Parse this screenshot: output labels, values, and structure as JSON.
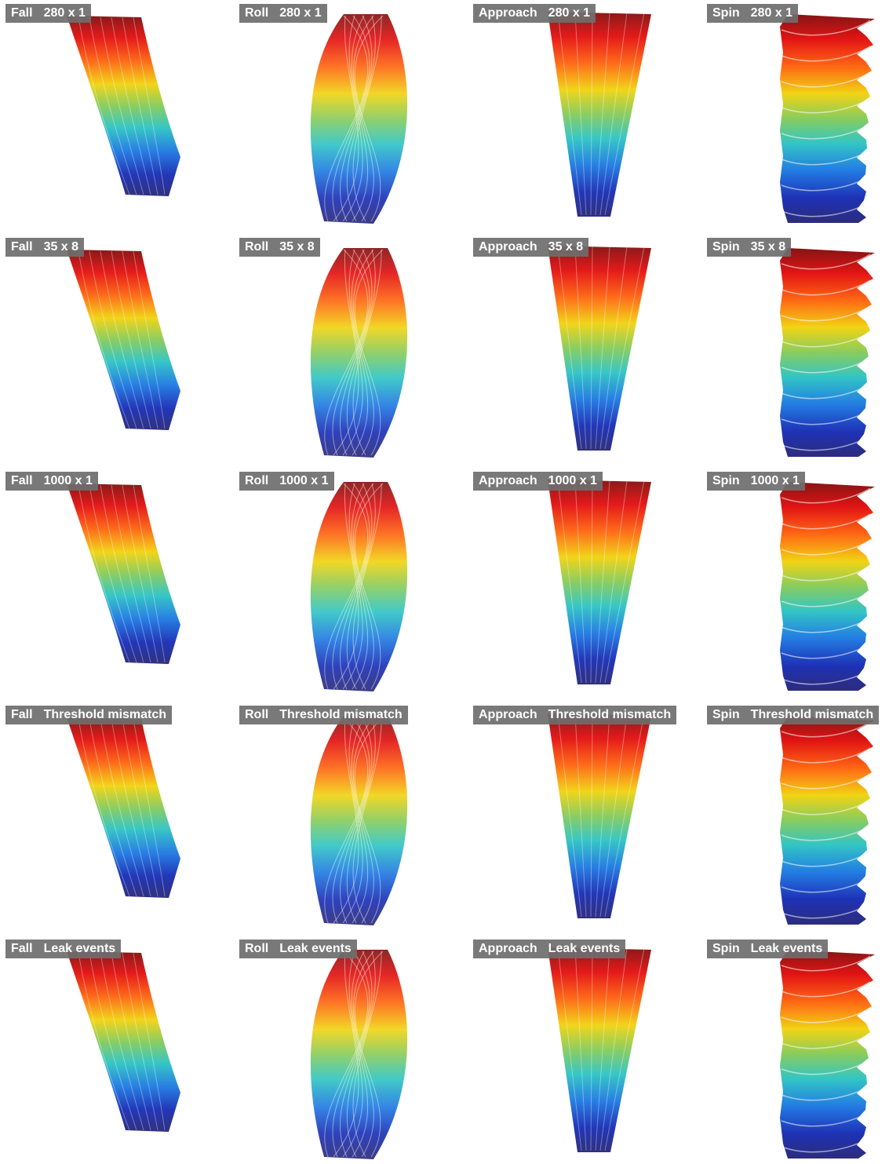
{
  "columns": [
    "Fall",
    "Roll",
    "Approach",
    "Spin"
  ],
  "rows": [
    "280 x 1",
    "35 x 8",
    "1000 x 1",
    "Threshold mismatch",
    "Leak events"
  ]
}
